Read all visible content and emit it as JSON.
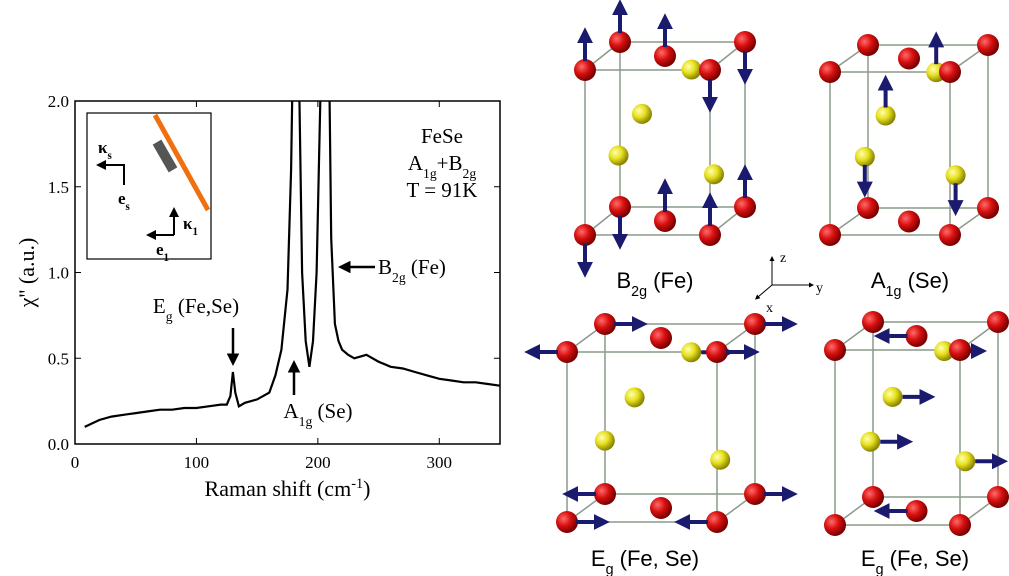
{
  "chart_data": {
    "type": "line",
    "x_label": [
      {
        "text": "Raman shift (cm"
      },
      {
        "text": "-1",
        "sup": true
      },
      {
        "text": ")"
      }
    ],
    "y_label": [
      {
        "text": "χ'' (a.u.)"
      }
    ],
    "x": [
      8,
      20,
      30,
      40,
      50,
      60,
      70,
      80,
      90,
      100,
      110,
      120,
      125,
      128,
      130,
      132,
      135,
      140,
      150,
      160,
      165,
      170,
      175,
      178,
      181,
      184,
      187,
      190,
      193,
      196,
      199,
      202,
      205,
      208,
      211,
      214,
      217,
      220,
      225,
      230,
      240,
      250,
      260,
      270,
      280,
      290,
      300,
      310,
      320,
      330,
      340,
      350
    ],
    "values": [
      0.1,
      0.14,
      0.16,
      0.17,
      0.18,
      0.19,
      0.2,
      0.2,
      0.21,
      0.21,
      0.22,
      0.23,
      0.23,
      0.28,
      0.42,
      0.3,
      0.22,
      0.24,
      0.26,
      0.3,
      0.4,
      0.55,
      0.9,
      1.6,
      3.0,
      2.4,
      1.0,
      0.6,
      0.45,
      0.6,
      1.0,
      2.0,
      3.5,
      3.0,
      1.2,
      0.7,
      0.6,
      0.55,
      0.52,
      0.5,
      0.52,
      0.48,
      0.45,
      0.44,
      0.42,
      0.4,
      0.38,
      0.37,
      0.36,
      0.36,
      0.35,
      0.34
    ],
    "color": "#000000",
    "xlim": [
      0,
      350
    ],
    "xticks": [
      0,
      100,
      200,
      300
    ],
    "ylim": [
      0,
      2
    ],
    "yticks": [
      {
        "value": 0,
        "label": "0.0"
      },
      0.5,
      {
        "value": 1,
        "label": "1.0"
      },
      1.5,
      {
        "value": 2,
        "label": "2.0"
      }
    ],
    "text_box": [
      [
        {
          "text": "FeSe"
        }
      ],
      [
        {
          "text": "A"
        },
        {
          "text": "1g",
          "sub": true
        },
        {
          "text": "+B"
        },
        {
          "text": "2g",
          "sub": true
        }
      ],
      [
        {
          "text": "T = 91K"
        }
      ]
    ],
    "annotations": [
      [
        {
          "text": "E"
        },
        {
          "text": "g",
          "sub": true
        },
        {
          "text": " (Fe,Se)"
        }
      ],
      [
        {
          "text": "B"
        },
        {
          "text": "2g",
          "sub": true
        },
        {
          "text": " (Fe)"
        }
      ],
      [
        {
          "text": "A"
        },
        {
          "text": "1g",
          "sub": true
        },
        {
          "text": " (Se)"
        }
      ]
    ],
    "inset_labels": [
      [
        {
          "text": "κ"
        },
        {
          "text": "s",
          "sub": true
        }
      ],
      [
        {
          "text": "e"
        },
        {
          "text": "s",
          "sub": true
        }
      ],
      [
        {
          "text": "κ"
        },
        {
          "text": "1",
          "sub": true
        }
      ],
      [
        {
          "text": "e"
        },
        {
          "text": "1",
          "sub": true
        }
      ]
    ]
  },
  "mode_diagrams": [
    {
      "label": [
        {
          "text": "B"
        },
        {
          "text": "2g",
          "sub": true
        },
        {
          "text": " (Fe)"
        }
      ]
    },
    {
      "label": [
        {
          "text": "A"
        },
        {
          "text": "1g",
          "sub": true
        },
        {
          "text": " (Se)"
        }
      ]
    },
    {
      "label": [
        {
          "text": "E"
        },
        {
          "text": "g",
          "sub": true
        },
        {
          "text": " (Fe, Se)"
        }
      ]
    },
    {
      "label": [
        {
          "text": "E"
        },
        {
          "text": "g",
          "sub": true
        },
        {
          "text": " (Fe, Se)"
        }
      ]
    }
  ],
  "axes_labels": [
    "z",
    "y",
    "x"
  ]
}
